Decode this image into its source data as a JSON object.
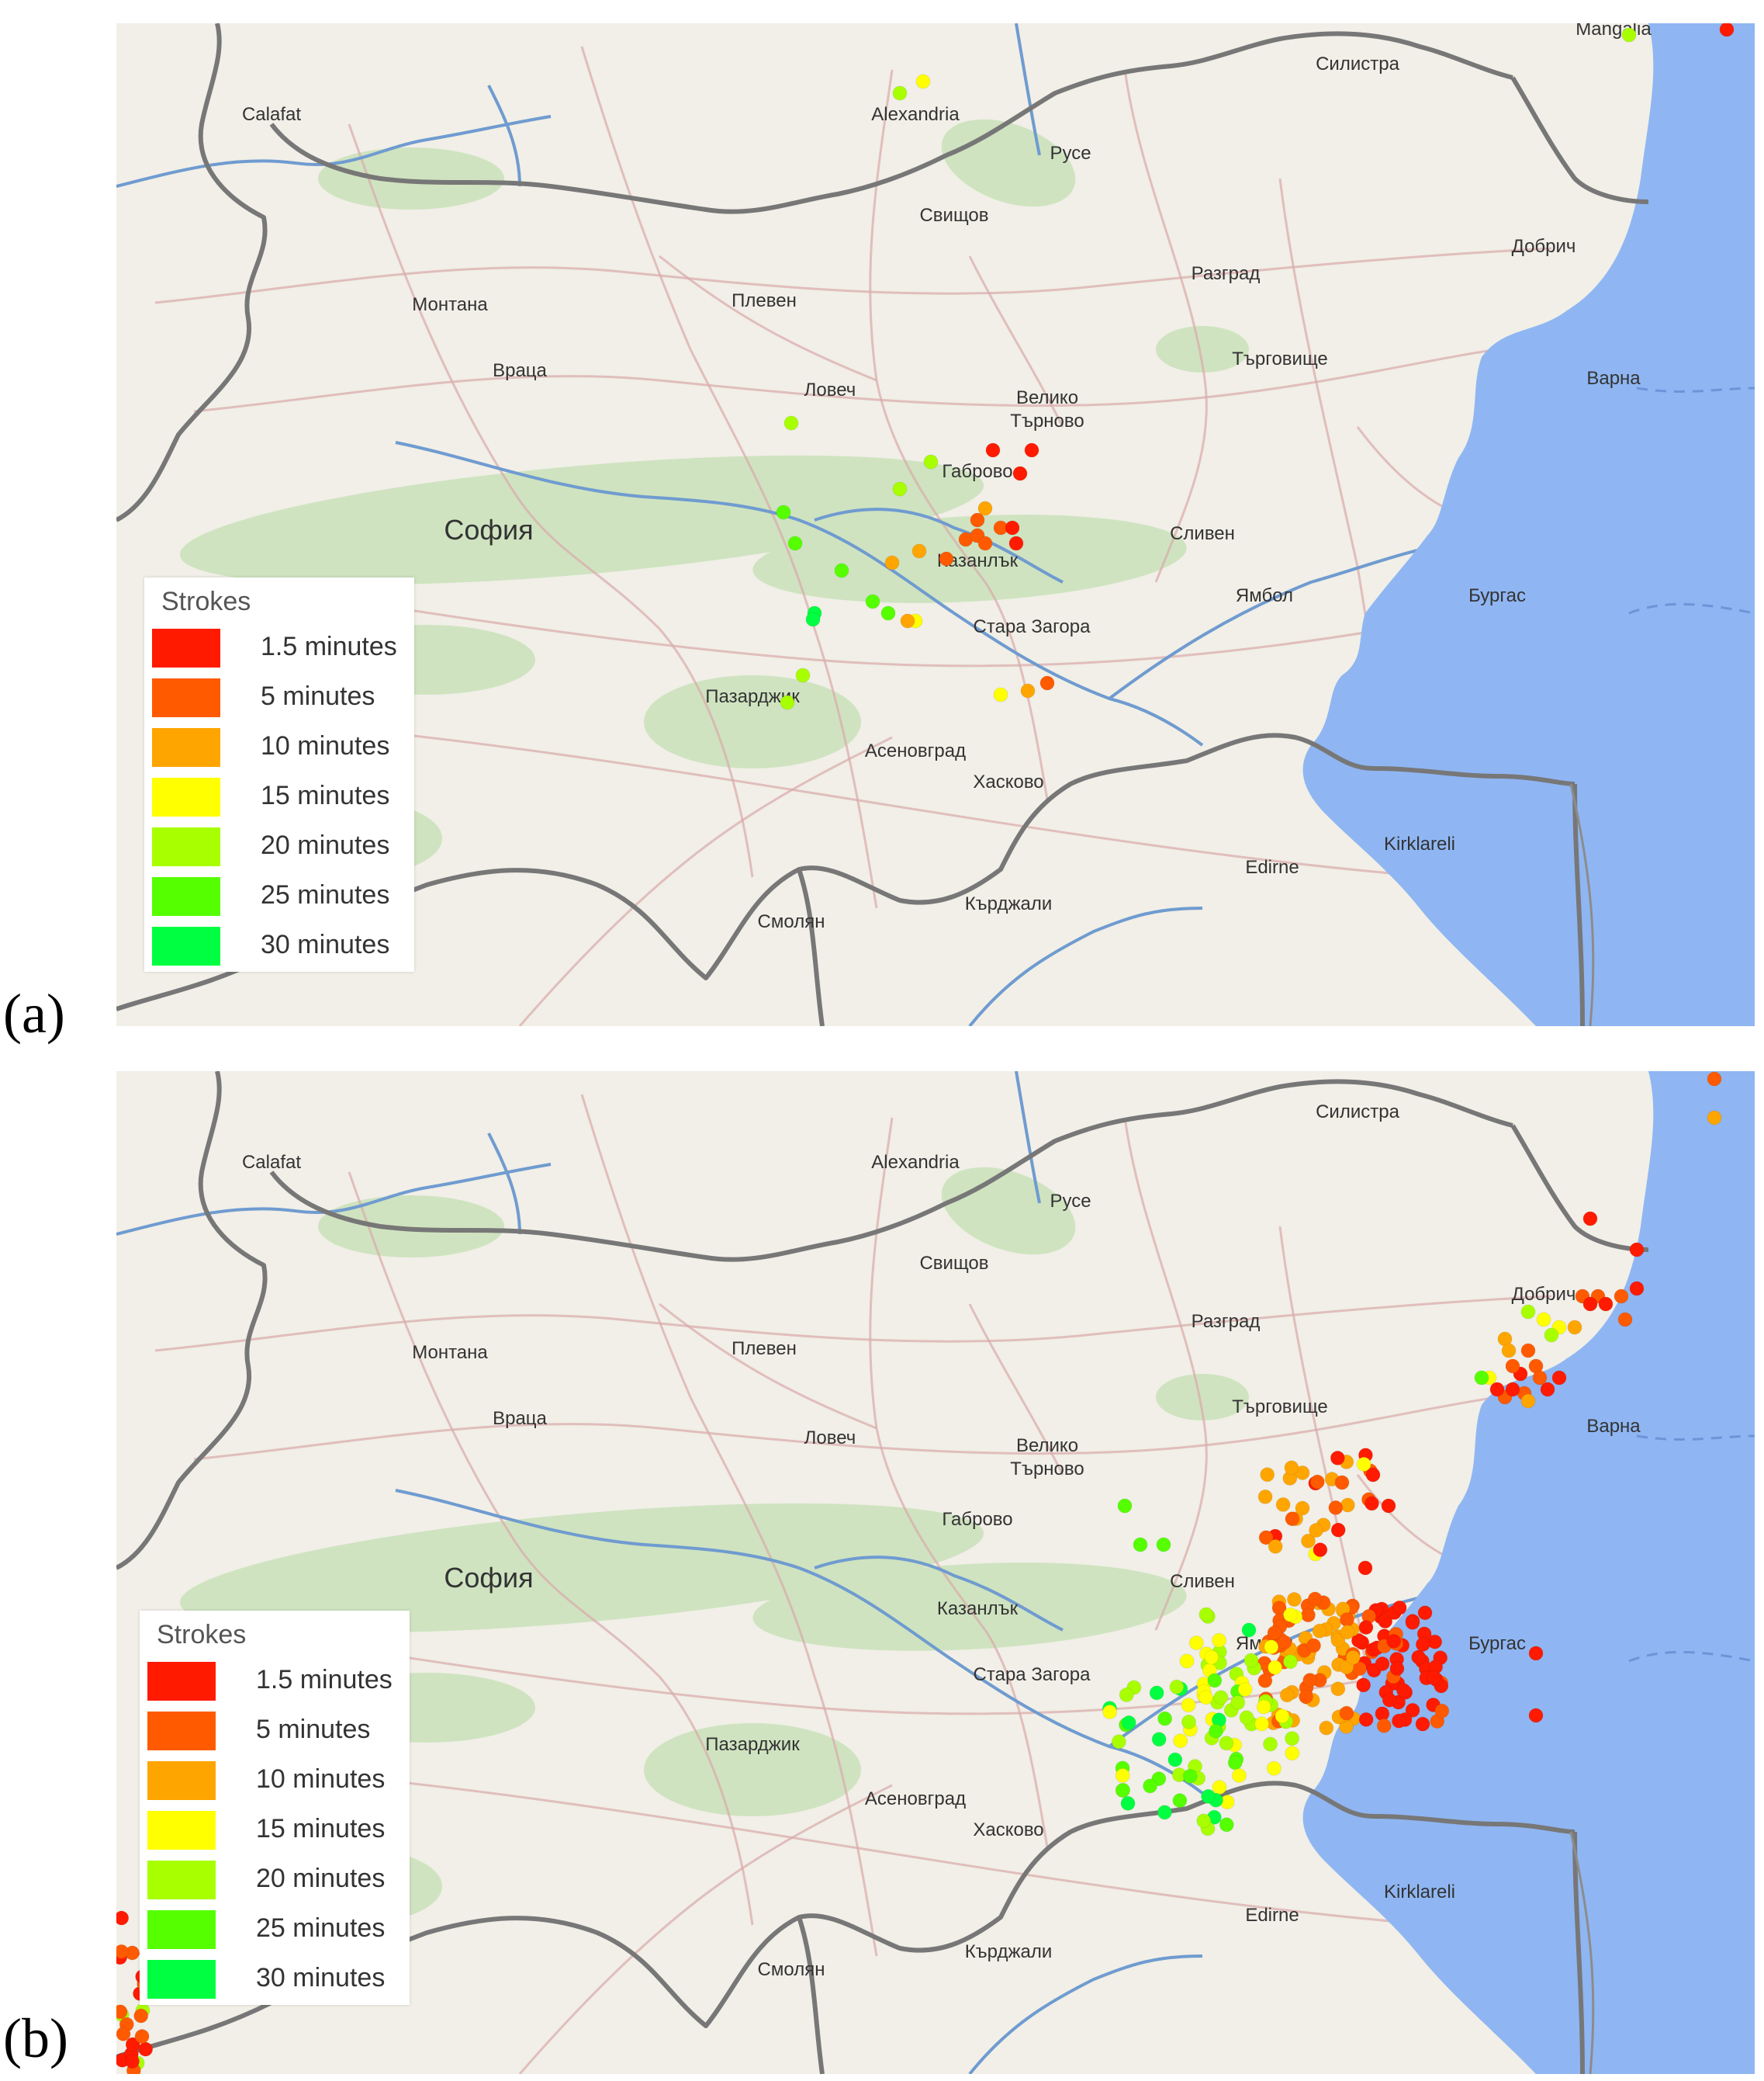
{
  "panels": [
    {
      "label": "(a)"
    },
    {
      "label": "(b)"
    }
  ],
  "legend": {
    "title": "Strokes",
    "items": [
      {
        "label": "1.5 minutes",
        "color": "#ff1a00"
      },
      {
        "label": "5 minutes",
        "color": "#ff5a00"
      },
      {
        "label": "10 minutes",
        "color": "#ffa500"
      },
      {
        "label": "15 minutes",
        "color": "#ffff00"
      },
      {
        "label": "20 minutes",
        "color": "#a8ff00"
      },
      {
        "label": "25 minutes",
        "color": "#55ff00"
      },
      {
        "label": "30 minutes",
        "color": "#00ff40"
      }
    ]
  },
  "colors": {
    "land": "#f1efe7",
    "sea": "#8fb6f2",
    "border": "#777777",
    "river": "#6f9bd0",
    "road": "#d9aaaa",
    "forest": "#cfe3c0"
  },
  "cities_a": [
    {
      "name": "Calafat"
    },
    {
      "name": "Alexandria"
    },
    {
      "name": "Силистра"
    },
    {
      "name": "Русе"
    },
    {
      "name": "Свищов"
    },
    {
      "name": "Разград"
    },
    {
      "name": "Добрич"
    },
    {
      "name": "Монтана"
    },
    {
      "name": "Плевен"
    },
    {
      "name": "Търговище"
    },
    {
      "name": "Враца"
    },
    {
      "name": "Ловеч"
    },
    {
      "name": "Велико"
    },
    {
      "name": "Търново"
    },
    {
      "name": "Варна"
    },
    {
      "name": "Габрово"
    },
    {
      "name": "София"
    },
    {
      "name": "Казанлък"
    },
    {
      "name": "Сливен"
    },
    {
      "name": "Ямбол"
    },
    {
      "name": "Бургас"
    },
    {
      "name": "Стара Загора"
    },
    {
      "name": "Пазарджик"
    },
    {
      "name": "Асеновград"
    },
    {
      "name": "Хасково"
    },
    {
      "name": "Edirne"
    },
    {
      "name": "Kirklareli"
    },
    {
      "name": "Смолян"
    },
    {
      "name": "Кърджали"
    },
    {
      "name": "Mangalia"
    }
  ],
  "cities_b": [
    {
      "name": "Calafat"
    },
    {
      "name": "Alexandria"
    },
    {
      "name": "Силистра"
    },
    {
      "name": "Русе"
    },
    {
      "name": "Свищов"
    },
    {
      "name": "Разград"
    },
    {
      "name": "Добрич"
    },
    {
      "name": "Монтана"
    },
    {
      "name": "Плевен"
    },
    {
      "name": "Търговище"
    },
    {
      "name": "Враца"
    },
    {
      "name": "Ловеч"
    },
    {
      "name": "Велико"
    },
    {
      "name": "Търново"
    },
    {
      "name": "Варна"
    },
    {
      "name": "Габрово"
    },
    {
      "name": "София"
    },
    {
      "name": "Казанлък"
    },
    {
      "name": "Сливен"
    },
    {
      "name": "Ямбол"
    },
    {
      "name": "Бургас"
    },
    {
      "name": "Стара Загора"
    },
    {
      "name": "Пазарджик"
    },
    {
      "name": "Асеновград"
    },
    {
      "name": "Хасково"
    },
    {
      "name": "Edirne"
    },
    {
      "name": "Kirklareli"
    },
    {
      "name": "Смолян"
    },
    {
      "name": "Кърджали"
    }
  ]
}
